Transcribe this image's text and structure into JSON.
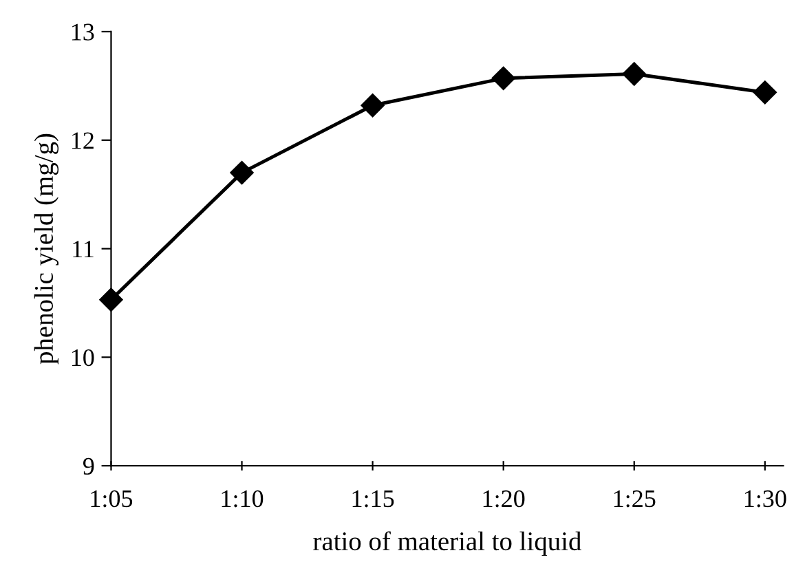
{
  "chart_data": {
    "type": "line",
    "xlabel": "ratio of material to liquid",
    "ylabel": "phenolic yield (mg/g)",
    "categories": [
      "1:05",
      "1:10",
      "1:15",
      "1:20",
      "1:25",
      "1:30"
    ],
    "series": [
      {
        "color": "#000000",
        "values": [
          10.53,
          11.7,
          12.32,
          12.57,
          12.61,
          12.44
        ]
      }
    ],
    "ylim": [
      9,
      13
    ],
    "yticks": [
      9,
      10,
      11,
      12,
      13
    ],
    "marker": "diamond",
    "line_style": "solid",
    "grid": false,
    "legend": false
  }
}
